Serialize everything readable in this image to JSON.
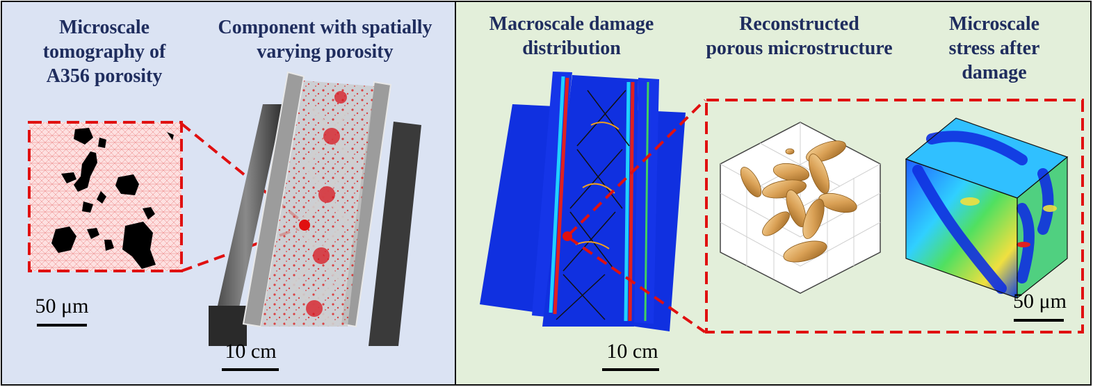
{
  "panels": {
    "left": {
      "headers": {
        "microscale_tomography": "Microscale\ntomography of\nA356 porosity",
        "component": "Component with spatially\nvarying porosity"
      },
      "scale_micro": "50 μm",
      "scale_macro": "10 cm"
    },
    "right": {
      "headers": {
        "macroscale_damage": "Macroscale damage\ndistribution",
        "reconstructed": "Reconstructed\nporous microstructure",
        "micro_stress": "Microscale\nstress after\ndamage"
      },
      "scale_macro": "10 cm",
      "scale_micro": "50 μm"
    }
  },
  "colors": {
    "left_background": "#dbe3f3",
    "right_background": "#e3efda",
    "header_text": "#1f2d5e",
    "highlight_dashes": "#e01010",
    "damage_field": "#1030e0",
    "pore_gold": "#d9a055"
  }
}
